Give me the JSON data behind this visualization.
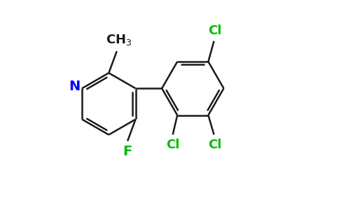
{
  "background_color": "#ffffff",
  "bond_color": "#1a1a1a",
  "N_color": "#0000ff",
  "F_color": "#00bb00",
  "Cl_color": "#00bb00",
  "CH3_color": "#1a1a1a",
  "line_width": 1.8,
  "figsize": [
    4.84,
    3.0
  ],
  "dpi": 100,
  "xlim": [
    0.0,
    1.0
  ],
  "ylim": [
    0.05,
    0.95
  ]
}
